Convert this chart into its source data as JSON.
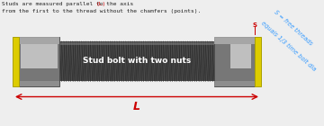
{
  "bg_color": "#eeeeee",
  "bolt_color": "#4a4a4a",
  "nut_face_color": "#aaaaaa",
  "nut_top_color": "#cccccc",
  "nut_shadow_color": "#777777",
  "washer_color": "#ddcc00",
  "washer_edge_color": "#aaa000",
  "thread_light": "#666666",
  "thread_dark": "#2a2a2a",
  "label_color": "#cc0000",
  "note_color": "#3399ff",
  "text_color": "#222222",
  "line1a": "Studs are measured parallel to the axis ",
  "line1b": "(L)",
  "line2": "from the first to the thread without the chamfers (points).",
  "center_label": "Stud bolt with two nuts",
  "L_label": "L",
  "S_label": "S",
  "S_note1": "S = free threads",
  "S_note2": "equals 1/3 time bolt dia",
  "fig_w": 3.6,
  "fig_h": 1.4,
  "dpi": 100
}
